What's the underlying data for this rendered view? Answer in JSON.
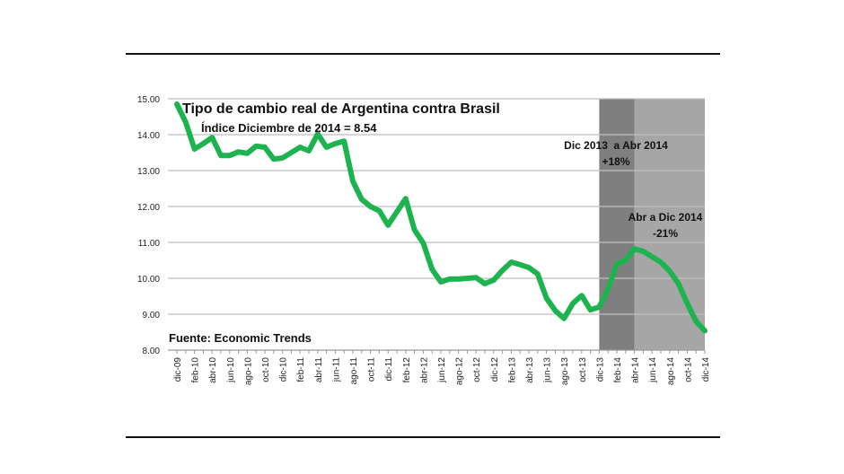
{
  "chart_data": {
    "type": "line",
    "title": "Tipo de cambio real de Argentina contra Brasil",
    "subtitle": "Índice Diciembre de 2014 = 8.54",
    "source": "Fuente: Economic Trends",
    "ylim": [
      8,
      15
    ],
    "yticks": [
      "8.00",
      "9.00",
      "10.00",
      "11.00",
      "12.00",
      "13.00",
      "14.00",
      "15.00"
    ],
    "grid": true,
    "line_color": "#1db34f",
    "x_tick_labels": [
      "dic-09",
      "feb-10",
      "abr-10",
      "jun-10",
      "ago-10",
      "oct-10",
      "dic-10",
      "feb-11",
      "abr-11",
      "jun-11",
      "ago-11",
      "oct-11",
      "dic-11",
      "feb-12",
      "abr-12",
      "jun-12",
      "ago-12",
      "oct-12",
      "dic-12",
      "feb-13",
      "abr-13",
      "jun-13",
      "ago-13",
      "oct-13",
      "dic-13",
      "feb-14",
      "abr-14",
      "jun-14",
      "ago-14",
      "oct-14",
      "dic-14"
    ],
    "values": [
      14.85,
      14.35,
      13.6,
      13.75,
      13.92,
      13.42,
      13.42,
      13.52,
      13.48,
      13.68,
      13.65,
      13.32,
      13.35,
      13.5,
      13.65,
      13.55,
      14.02,
      13.65,
      13.75,
      13.82,
      12.7,
      12.2,
      12.0,
      11.88,
      11.48,
      11.85,
      12.22,
      11.35,
      10.98,
      10.25,
      9.9,
      9.98,
      9.98,
      10.0,
      10.02,
      9.85,
      9.95,
      10.22,
      10.45,
      10.38,
      10.3,
      10.12,
      9.45,
      9.1,
      8.88,
      9.3,
      9.52,
      9.12,
      9.2,
      9.7,
      10.4,
      10.5,
      10.82,
      10.75,
      10.6,
      10.45,
      10.2,
      9.85,
      9.3,
      8.8,
      8.54
    ],
    "shaded_periods": [
      {
        "from": "dic-13",
        "to": "abr-14",
        "color": "#7f7f7f",
        "label": "Dic 2013  a Abr 2014",
        "change": "+18%"
      },
      {
        "from": "abr-14",
        "to": "dic-14",
        "color": "#a6a6a6",
        "label": "Abr a Dic 2014",
        "change": "-21%"
      }
    ]
  }
}
